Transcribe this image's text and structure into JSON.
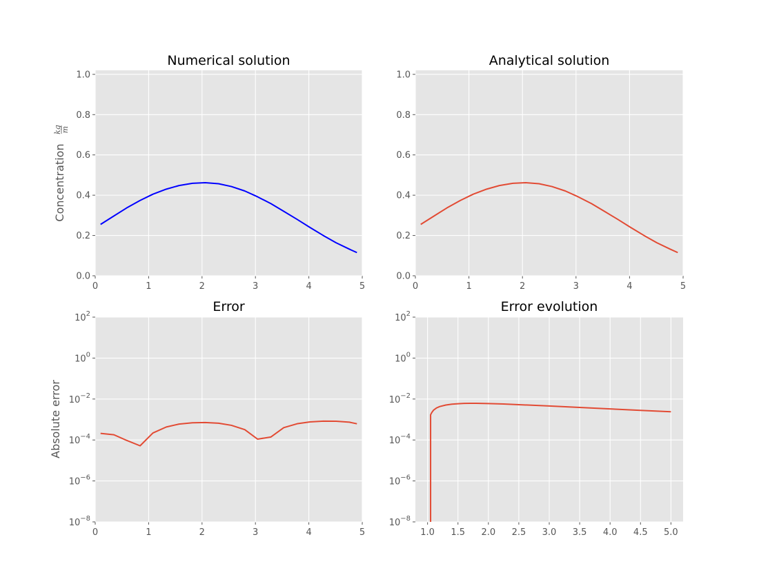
{
  "chart_data": [
    {
      "type": "line",
      "title": "Numerical solution",
      "xlabel": "",
      "ylabel": "Concentration",
      "ylabel_unit": {
        "numerator": "kg",
        "denominator": "m"
      },
      "xlim": [
        0,
        5
      ],
      "ylim": [
        0,
        1.02
      ],
      "yscale": "linear",
      "grid": true,
      "x_ticks": [
        "0",
        "1",
        "2",
        "3",
        "4",
        "5"
      ],
      "y_ticks": [
        "0.0",
        "0.2",
        "0.4",
        "0.6",
        "0.8",
        "1.0"
      ],
      "series": [
        {
          "color": "#0000ff",
          "x": [
            0.1,
            0.35,
            0.59,
            0.84,
            1.08,
            1.33,
            1.57,
            1.82,
            2.06,
            2.31,
            2.55,
            2.8,
            3.04,
            3.29,
            3.53,
            3.78,
            4.02,
            4.27,
            4.51,
            4.76,
            4.9
          ],
          "y": [
            0.255,
            0.297,
            0.337,
            0.374,
            0.405,
            0.43,
            0.448,
            0.459,
            0.462,
            0.457,
            0.443,
            0.421,
            0.392,
            0.358,
            0.32,
            0.28,
            0.24,
            0.2,
            0.164,
            0.132,
            0.115
          ]
        }
      ]
    },
    {
      "type": "line",
      "title": "Analytical solution",
      "xlabel": "",
      "ylabel": "",
      "xlim": [
        0,
        5
      ],
      "ylim": [
        0,
        1.02
      ],
      "yscale": "linear",
      "grid": true,
      "x_ticks": [
        "0",
        "1",
        "2",
        "3",
        "4",
        "5"
      ],
      "y_ticks": [
        "0.0",
        "0.2",
        "0.4",
        "0.6",
        "0.8",
        "1.0"
      ],
      "series": [
        {
          "color": "#e24a33",
          "x": [
            0.1,
            0.35,
            0.59,
            0.84,
            1.08,
            1.33,
            1.57,
            1.82,
            2.06,
            2.31,
            2.55,
            2.8,
            3.04,
            3.29,
            3.53,
            3.78,
            4.02,
            4.27,
            4.51,
            4.76,
            4.9
          ],
          "y": [
            0.255,
            0.297,
            0.337,
            0.374,
            0.405,
            0.43,
            0.448,
            0.459,
            0.462,
            0.457,
            0.443,
            0.421,
            0.392,
            0.358,
            0.32,
            0.28,
            0.24,
            0.2,
            0.164,
            0.132,
            0.115
          ]
        }
      ]
    },
    {
      "type": "line",
      "title": "Error",
      "xlabel": "",
      "ylabel": "Absolute error",
      "xlim": [
        0,
        5
      ],
      "ylim": [
        1e-08,
        100
      ],
      "yscale": "log",
      "grid": true,
      "x_ticks": [
        "0",
        "1",
        "2",
        "3",
        "4",
        "5"
      ],
      "y_ticks": [
        {
          "base": "10",
          "exp": "−8"
        },
        {
          "base": "10",
          "exp": "−6"
        },
        {
          "base": "10",
          "exp": "−4"
        },
        {
          "base": "10",
          "exp": "−2"
        },
        {
          "base": "10",
          "exp": "0"
        },
        {
          "base": "10",
          "exp": "2"
        }
      ],
      "series": [
        {
          "color": "#e24a33",
          "x": [
            0.1,
            0.35,
            0.59,
            0.84,
            1.08,
            1.33,
            1.57,
            1.82,
            2.06,
            2.31,
            2.55,
            2.8,
            3.04,
            3.29,
            3.53,
            3.78,
            4.02,
            4.27,
            4.51,
            4.76,
            4.9
          ],
          "y": [
            0.00021,
            0.00018,
            9.5e-05,
            5.2e-05,
            0.00022,
            0.00043,
            0.0006,
            0.00069,
            0.00071,
            0.00066,
            0.00052,
            0.00032,
            0.00011,
            0.00014,
            0.0004,
            0.00062,
            0.00076,
            0.00083,
            0.00082,
            0.00074,
            0.00062
          ]
        }
      ]
    },
    {
      "type": "line",
      "title": "Error evolution",
      "xlabel": "",
      "ylabel": "",
      "xlim": [
        0.8,
        5.2
      ],
      "ylim": [
        1e-08,
        100
      ],
      "yscale": "log",
      "grid": true,
      "x_ticks": [
        "1.0",
        "1.5",
        "2.0",
        "2.5",
        "3.0",
        "3.5",
        "4.0",
        "4.5",
        "5.0"
      ],
      "y_ticks": [
        {
          "base": "10",
          "exp": "−8"
        },
        {
          "base": "10",
          "exp": "−6"
        },
        {
          "base": "10",
          "exp": "−4"
        },
        {
          "base": "10",
          "exp": "−2"
        },
        {
          "base": "10",
          "exp": "0"
        },
        {
          "base": "10",
          "exp": "2"
        }
      ],
      "series": [
        {
          "color": "#e24a33",
          "x": [
            1.05,
            1.05,
            1.07,
            1.1,
            1.15,
            1.2,
            1.3,
            1.4,
            1.5,
            1.6,
            1.7,
            1.8,
            2.0,
            2.25,
            2.5,
            3.0,
            3.5,
            4.0,
            4.5,
            5.0
          ],
          "y": [
            1e-08,
            0.0017,
            0.0022,
            0.0029,
            0.0037,
            0.0043,
            0.0051,
            0.0056,
            0.0059,
            0.0061,
            0.0062,
            0.0062,
            0.006,
            0.0057,
            0.0053,
            0.0046,
            0.0039,
            0.0033,
            0.0028,
            0.0024
          ]
        }
      ]
    }
  ]
}
